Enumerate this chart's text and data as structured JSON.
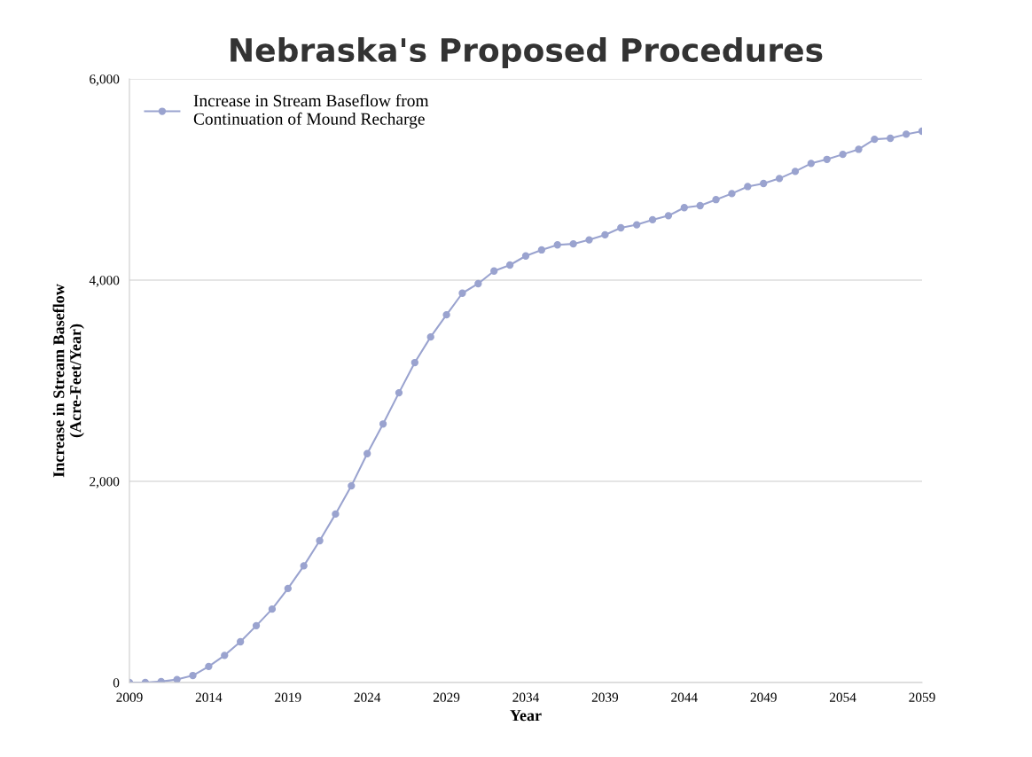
{
  "chart_data": {
    "type": "line",
    "title": "Nebraska's Proposed Procedures",
    "xlabel": "Year",
    "ylabel": "Increase in Stream Baseflow\n(Acre-Feet/Year)",
    "x": [
      2009,
      2010,
      2011,
      2012,
      2013,
      2014,
      2015,
      2016,
      2017,
      2018,
      2019,
      2020,
      2021,
      2022,
      2023,
      2024,
      2025,
      2026,
      2027,
      2028,
      2029,
      2030,
      2031,
      2032,
      2033,
      2034,
      2035,
      2036,
      2037,
      2038,
      2039,
      2040,
      2041,
      2042,
      2043,
      2044,
      2045,
      2046,
      2047,
      2048,
      2049,
      2050,
      2051,
      2052,
      2053,
      2054,
      2055,
      2056,
      2057,
      2058,
      2059
    ],
    "series": [
      {
        "name": "Increase in Stream Baseflow from\nContinuation of Mound Recharge",
        "color": "#9aa3cf",
        "values": [
          0,
          0,
          10,
          30,
          70,
          160,
          270,
          405,
          565,
          730,
          935,
          1160,
          1410,
          1675,
          1955,
          2275,
          2570,
          2880,
          3180,
          3435,
          3655,
          3870,
          3965,
          4090,
          4150,
          4240,
          4300,
          4350,
          4360,
          4400,
          4450,
          4520,
          4550,
          4600,
          4640,
          4720,
          4740,
          4800,
          4860,
          4930,
          4960,
          5010,
          5080,
          5160,
          5200,
          5250,
          5300,
          5400,
          5410,
          5450,
          5480
        ]
      }
    ],
    "xlim": [
      2009,
      2059
    ],
    "xticks": [
      2009,
      2014,
      2019,
      2024,
      2029,
      2034,
      2039,
      2044,
      2049,
      2054,
      2059
    ],
    "ylim": [
      0,
      6000
    ],
    "yticks": [
      {
        "value": 0,
        "label": "0"
      },
      {
        "value": 2000,
        "label": "2,000"
      },
      {
        "value": 4000,
        "label": "4,000"
      },
      {
        "value": 6000,
        "label": "6,000"
      }
    ],
    "grid": "y",
    "legend": "top left",
    "marker": "circle",
    "line_style": "solid"
  }
}
